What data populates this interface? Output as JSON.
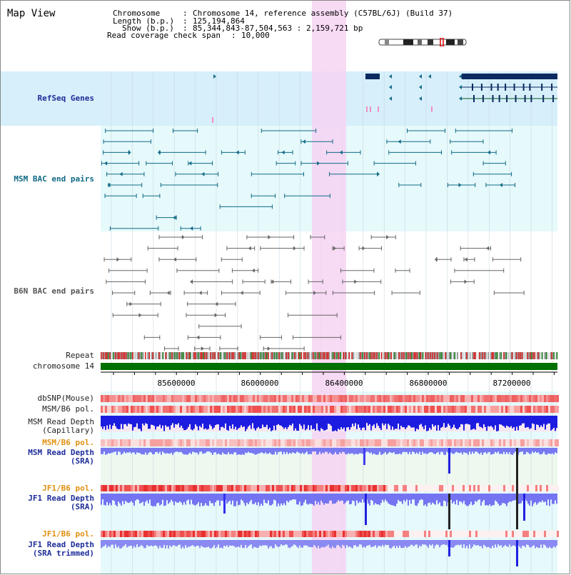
{
  "window": {
    "title": "Map View"
  },
  "info": {
    "chromosome_key": "Chromosome",
    "chromosome_value": "Chromosome 14, reference assembly (C57BL/6J) (Build 37)",
    "length_key": "Length (b.p.)",
    "length_value": "125,194,864",
    "show_key": "Show (b.p.)",
    "show_value": "85,344,843-87,504,563 : 2,159,721 bp",
    "span_key": "Read coverage check span",
    "span_value": "10,000"
  },
  "tracks": {
    "refseq": "RefSeq Genes",
    "msm_bac": "MSM BAC end pairs",
    "b6n_bac": "B6N BAC end pairs",
    "repeat": "Repeat",
    "chromosome": "chromosome 14",
    "dbsnp": "dbSNP(Mouse)",
    "msm_b6_pol": "MSM/B6 pol.",
    "msm_depth_cap_1": "MSM Read Depth",
    "msm_depth_cap_2": "(Capillary)",
    "msm_b6_pol_2": "MSM/B6 pol.",
    "msm_depth_sra_1": "MSM Read Depth",
    "msm_depth_sra_2": "(SRA)",
    "jf1_b6_pol": "JF1/B6 pol.",
    "jf1_depth_sra_1": "JF1 Read Depth",
    "jf1_depth_sra_2": "(SRA)",
    "jf1_b6_pol_2": "JF1/B6 pol.",
    "jf1_depth_trim_1": "JF1 Read Depth",
    "jf1_depth_trim_2": "(SRA trimmed)"
  },
  "axis": {
    "ticks": [
      "85600000",
      "86000000",
      "86400000",
      "86800000",
      "87200000"
    ]
  },
  "colors": {
    "highlight": "#f6d3f2",
    "refseq_bg": "#d6effa",
    "pale_cyan": "#e8f8fb",
    "teal": "#106a86",
    "gray_feature": "#666666",
    "chromosome_bar": "#007000",
    "depth_blue": "#2020e0",
    "depth_lavender": "#7474f2",
    "snp_red": "#f06060"
  }
}
